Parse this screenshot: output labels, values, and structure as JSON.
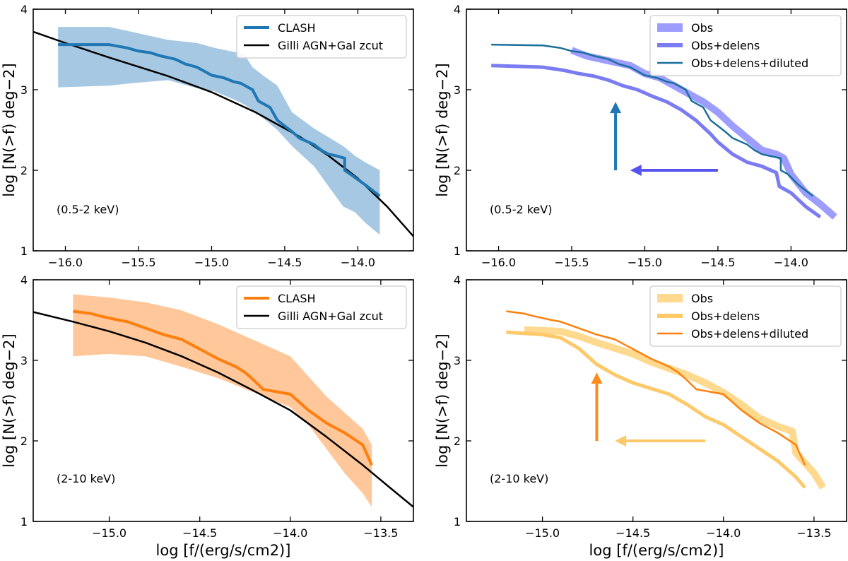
{
  "colors": {
    "clash_blue": "#1f77b4",
    "band_blue": "#a6c8e2",
    "clash_orange": "#ff7f0e",
    "band_orange": "#ffc79a",
    "model_black": "#000000",
    "obs_purple": "#8c8cff",
    "delens_purple": "#7b7bf2",
    "diluted_teal": "#1a6f9c",
    "obs_orange": "#ffd27a",
    "delens_orange": "#ffc96a",
    "diluted_orange": "#ff7f0e",
    "arrow_up_blue": "#1f77b4",
    "arrow_left_purple": "#5555ee",
    "arrow_up_orange": "#ff8c1a",
    "arrow_left_orange": "#ffc96a"
  },
  "chart_data": [
    {
      "id": "soft-clash",
      "type": "line",
      "band_label": "(0.5-2 keV)",
      "xlim": [
        -16.22,
        -13.62
      ],
      "ylim": [
        1,
        4
      ],
      "xticks": [
        -16.0,
        -15.5,
        -15.0,
        -14.5,
        -14.0
      ],
      "xtick_labels": [
        "−16.0",
        "−15.5",
        "−15.0",
        "−14.5",
        "−14.0"
      ],
      "yticks": [
        1,
        2,
        3,
        4
      ],
      "ytick_labels": [
        "1",
        "2",
        "3",
        "4"
      ],
      "ylabel": "log [N(>f) deg−2]",
      "xlabel": "",
      "legend": [
        {
          "label": "CLASH",
          "color_key": "clash_blue",
          "width": 4
        },
        {
          "label": "Gilli AGN+Gal zcut",
          "color_key": "model_black",
          "width": 2.5
        }
      ],
      "series": [
        {
          "name": "CLASH band",
          "kind": "band",
          "color_key": "band_blue",
          "x": [
            -16.05,
            -15.7,
            -15.55,
            -15.3,
            -15.1,
            -14.98,
            -14.85,
            -14.78,
            -14.72,
            -14.65,
            -14.55,
            -14.45,
            -14.3,
            -14.1,
            -14.02,
            -13.95,
            -13.85
          ],
          "upper": [
            3.78,
            3.78,
            3.72,
            3.62,
            3.58,
            3.52,
            3.47,
            3.45,
            3.28,
            3.18,
            3.05,
            2.72,
            2.52,
            2.3,
            2.18,
            2.1,
            2.0
          ],
          "lower": [
            3.03,
            3.05,
            3.08,
            3.12,
            3.02,
            2.98,
            2.88,
            2.82,
            2.75,
            2.65,
            2.5,
            2.3,
            2.05,
            1.55,
            1.48,
            1.35,
            1.2
          ]
        },
        {
          "name": "Gilli AGN+Gal zcut",
          "kind": "line",
          "color_key": "model_black",
          "width": 2.5,
          "x": [
            -16.22,
            -16.0,
            -15.7,
            -15.3,
            -15.0,
            -14.7,
            -14.4,
            -14.2,
            -14.0,
            -13.8,
            -13.62
          ],
          "y": [
            3.72,
            3.58,
            3.4,
            3.17,
            2.97,
            2.72,
            2.42,
            2.18,
            1.9,
            1.55,
            1.18
          ]
        },
        {
          "name": "CLASH",
          "kind": "line",
          "color_key": "clash_blue",
          "width": 4,
          "x": [
            -16.05,
            -15.7,
            -15.58,
            -15.5,
            -15.42,
            -15.35,
            -15.25,
            -15.18,
            -15.1,
            -15.0,
            -14.92,
            -14.85,
            -14.8,
            -14.72,
            -14.68,
            -14.6,
            -14.55,
            -14.5,
            -14.45,
            -14.4,
            -14.35,
            -14.3,
            -14.25,
            -14.2,
            -14.15,
            -14.09,
            -14.09,
            -14.05,
            -13.95,
            -13.85
          ],
          "y": [
            3.56,
            3.56,
            3.52,
            3.48,
            3.46,
            3.42,
            3.38,
            3.32,
            3.28,
            3.18,
            3.15,
            3.1,
            3.08,
            3.0,
            2.86,
            2.78,
            2.62,
            2.55,
            2.48,
            2.4,
            2.36,
            2.32,
            2.25,
            2.2,
            2.18,
            2.15,
            2.0,
            1.95,
            1.82,
            1.68
          ]
        }
      ]
    },
    {
      "id": "soft-obs",
      "type": "line",
      "band_label": "(0.5-2 keV)",
      "xlim": [
        -16.22,
        -13.62
      ],
      "ylim": [
        1,
        4
      ],
      "xticks": [
        -16.0,
        -15.5,
        -15.0,
        -14.5,
        -14.0
      ],
      "xtick_labels": [
        "−16.0",
        "−15.5",
        "−15.0",
        "−14.5",
        "−14.0"
      ],
      "yticks": [
        1,
        2,
        3,
        4
      ],
      "ytick_labels": [
        "1",
        "2",
        "3",
        "4"
      ],
      "ylabel": "log [N(>f) deg−2]",
      "xlabel": "",
      "legend": [
        {
          "label": "Obs",
          "color_key": "obs_purple",
          "width": 12
        },
        {
          "label": "Obs+delens",
          "color_key": "delens_purple",
          "width": 6
        },
        {
          "label": "Obs+delens+diluted",
          "color_key": "diluted_teal",
          "width": 2.5
        }
      ],
      "arrows": [
        {
          "name": "dilution-arrow",
          "color_key": "arrow_up_blue",
          "x1": -15.2,
          "y1": 2.0,
          "x2": -15.2,
          "y2": 2.85
        },
        {
          "name": "delensing-arrow",
          "color_key": "arrow_left_purple",
          "x1": -14.5,
          "y1": 2.0,
          "x2": -15.1,
          "y2": 2.0
        }
      ],
      "series": [
        {
          "name": "Obs",
          "kind": "line",
          "color_key": "obs_purple",
          "width": 10,
          "x": [
            -15.5,
            -15.4,
            -15.3,
            -15.2,
            -15.1,
            -15.0,
            -14.9,
            -14.8,
            -14.7,
            -14.6,
            -14.5,
            -14.4,
            -14.3,
            -14.2,
            -14.1,
            -14.05,
            -14.0,
            -13.9,
            -13.8,
            -13.7
          ],
          "y": [
            3.49,
            3.42,
            3.38,
            3.34,
            3.3,
            3.2,
            3.15,
            3.05,
            2.95,
            2.85,
            2.72,
            2.55,
            2.4,
            2.25,
            2.2,
            2.15,
            1.95,
            1.72,
            1.58,
            1.42
          ]
        },
        {
          "name": "Obs+delens",
          "kind": "line",
          "color_key": "delens_purple",
          "width": 5,
          "x": [
            -16.05,
            -15.7,
            -15.55,
            -15.45,
            -15.35,
            -15.25,
            -15.15,
            -15.05,
            -14.95,
            -14.85,
            -14.75,
            -14.65,
            -14.55,
            -14.5,
            -14.4,
            -14.3,
            -14.2,
            -14.1,
            -14.08,
            -14.0,
            -13.9,
            -13.8
          ],
          "y": [
            3.3,
            3.28,
            3.24,
            3.2,
            3.17,
            3.12,
            3.05,
            3.0,
            2.92,
            2.85,
            2.75,
            2.62,
            2.45,
            2.35,
            2.2,
            2.1,
            2.05,
            1.97,
            1.8,
            1.72,
            1.55,
            1.42
          ]
        },
        {
          "name": "Obs+delens+diluted",
          "kind": "line",
          "color_key": "diluted_teal",
          "width": 2.5,
          "x": [
            -16.05,
            -15.7,
            -15.58,
            -15.5,
            -15.42,
            -15.35,
            -15.25,
            -15.18,
            -15.1,
            -15.0,
            -14.92,
            -14.85,
            -14.8,
            -14.72,
            -14.68,
            -14.6,
            -14.55,
            -14.5,
            -14.45,
            -14.4,
            -14.35,
            -14.3,
            -14.25,
            -14.2,
            -14.15,
            -14.07,
            -14.07,
            -14.02,
            -13.95,
            -13.85
          ],
          "y": [
            3.56,
            3.55,
            3.52,
            3.48,
            3.46,
            3.42,
            3.38,
            3.32,
            3.28,
            3.18,
            3.15,
            3.1,
            3.08,
            3.0,
            2.86,
            2.78,
            2.62,
            2.55,
            2.48,
            2.4,
            2.36,
            2.32,
            2.25,
            2.2,
            2.18,
            2.15,
            2.0,
            1.95,
            1.82,
            1.68
          ]
        }
      ]
    },
    {
      "id": "hard-clash",
      "type": "line",
      "band_label": "(2-10 keV)",
      "xlim": [
        -15.42,
        -13.32
      ],
      "ylim": [
        1,
        4
      ],
      "xticks": [
        -15.0,
        -14.5,
        -14.0,
        -13.5
      ],
      "xtick_labels": [
        "−15.0",
        "−14.5",
        "−14.0",
        "−13.5"
      ],
      "yticks": [
        1,
        2,
        3,
        4
      ],
      "ytick_labels": [
        "1",
        "2",
        "3",
        "4"
      ],
      "ylabel": "log [N(>f) deg−2]",
      "xlabel": "log [f/(erg/s/cm2)]",
      "legend": [
        {
          "label": "CLASH",
          "color_key": "clash_orange",
          "width": 4
        },
        {
          "label": "Gilli AGN+Gal zcut",
          "color_key": "model_black",
          "width": 2.5
        }
      ],
      "series": [
        {
          "name": "CLASH band",
          "kind": "band",
          "color_key": "band_orange",
          "x": [
            -15.2,
            -15.0,
            -14.8,
            -14.6,
            -14.4,
            -14.2,
            -14.0,
            -13.9,
            -13.8,
            -13.7,
            -13.6,
            -13.55
          ],
          "upper": [
            3.82,
            3.78,
            3.72,
            3.62,
            3.45,
            3.25,
            3.05,
            2.8,
            2.55,
            2.35,
            2.15,
            1.95
          ],
          "lower": [
            3.05,
            3.08,
            3.05,
            2.92,
            2.78,
            2.6,
            2.42,
            2.2,
            1.9,
            1.6,
            1.35,
            1.18
          ]
        },
        {
          "name": "Gilli AGN+Gal zcut",
          "kind": "line",
          "color_key": "model_black",
          "width": 2.5,
          "x": [
            -15.42,
            -15.2,
            -15.0,
            -14.8,
            -14.6,
            -14.4,
            -14.2,
            -14.0,
            -13.8,
            -13.6,
            -13.45,
            -13.32
          ],
          "y": [
            3.6,
            3.48,
            3.36,
            3.22,
            3.05,
            2.85,
            2.62,
            2.38,
            2.05,
            1.7,
            1.42,
            1.18
          ]
        },
        {
          "name": "CLASH",
          "kind": "line",
          "color_key": "clash_orange",
          "width": 4,
          "x": [
            -15.2,
            -15.1,
            -15.05,
            -14.95,
            -14.9,
            -14.85,
            -14.8,
            -14.75,
            -14.7,
            -14.6,
            -14.55,
            -14.5,
            -14.45,
            -14.4,
            -14.35,
            -14.3,
            -14.25,
            -14.2,
            -14.15,
            -14.1,
            -14.05,
            -14.0,
            -13.95,
            -13.9,
            -13.8,
            -13.7,
            -13.6,
            -13.55
          ],
          "y": [
            3.61,
            3.58,
            3.55,
            3.5,
            3.48,
            3.44,
            3.4,
            3.36,
            3.32,
            3.26,
            3.2,
            3.14,
            3.08,
            3.02,
            2.97,
            2.92,
            2.85,
            2.75,
            2.64,
            2.62,
            2.6,
            2.58,
            2.48,
            2.38,
            2.22,
            2.1,
            1.95,
            1.7
          ]
        }
      ]
    },
    {
      "id": "hard-obs",
      "type": "line",
      "band_label": "(2-10 keV)",
      "xlim": [
        -15.42,
        -13.32
      ],
      "ylim": [
        1,
        4
      ],
      "xticks": [
        -15.0,
        -14.5,
        -14.0,
        -13.5
      ],
      "xtick_labels": [
        "−15.0",
        "−14.5",
        "−14.0",
        "−13.5"
      ],
      "yticks": [
        1,
        2,
        3,
        4
      ],
      "ytick_labels": [
        "1",
        "2",
        "3",
        "4"
      ],
      "ylabel": "log [N(>f) deg−2]",
      "xlabel": "log [f/(erg/s/cm2)]",
      "legend": [
        {
          "label": "Obs",
          "color_key": "obs_orange",
          "width": 12
        },
        {
          "label": "Obs+delens",
          "color_key": "delens_orange",
          "width": 6
        },
        {
          "label": "Obs+delens+diluted",
          "color_key": "diluted_orange",
          "width": 2.5
        }
      ],
      "arrows": [
        {
          "name": "dilution-arrow",
          "color_key": "arrow_up_orange",
          "x1": -14.7,
          "y1": 2.0,
          "x2": -14.7,
          "y2": 2.85
        },
        {
          "name": "delensing-arrow",
          "color_key": "arrow_left_orange",
          "x1": -14.1,
          "y1": 2.0,
          "x2": -14.6,
          "y2": 2.0
        }
      ],
      "series": [
        {
          "name": "Obs",
          "kind": "line",
          "color_key": "obs_orange",
          "width": 10,
          "x": [
            -15.1,
            -14.9,
            -14.8,
            -14.7,
            -14.6,
            -14.5,
            -14.4,
            -14.3,
            -14.2,
            -14.1,
            -14.0,
            -13.9,
            -13.8,
            -13.7,
            -13.62,
            -13.6,
            -13.5,
            -13.45
          ],
          "y": [
            3.38,
            3.36,
            3.3,
            3.22,
            3.15,
            3.08,
            2.98,
            2.9,
            2.82,
            2.72,
            2.6,
            2.45,
            2.28,
            2.18,
            2.12,
            1.85,
            1.6,
            1.42
          ]
        },
        {
          "name": "Obs+delens",
          "kind": "line",
          "color_key": "delens_orange",
          "width": 5,
          "x": [
            -15.2,
            -15.0,
            -14.9,
            -14.8,
            -14.7,
            -14.6,
            -14.5,
            -14.4,
            -14.3,
            -14.2,
            -14.1,
            -14.0,
            -13.9,
            -13.8,
            -13.7,
            -13.6,
            -13.55
          ],
          "y": [
            3.35,
            3.32,
            3.28,
            3.15,
            2.95,
            2.82,
            2.72,
            2.65,
            2.58,
            2.45,
            2.3,
            2.2,
            2.05,
            1.9,
            1.75,
            1.55,
            1.42
          ]
        },
        {
          "name": "Obs+delens+diluted",
          "kind": "line",
          "color_key": "diluted_orange",
          "width": 2.5,
          "x": [
            -15.2,
            -15.1,
            -15.05,
            -14.95,
            -14.9,
            -14.85,
            -14.8,
            -14.75,
            -14.7,
            -14.6,
            -14.55,
            -14.5,
            -14.45,
            -14.4,
            -14.35,
            -14.3,
            -14.25,
            -14.2,
            -14.15,
            -14.1,
            -14.05,
            -14.0,
            -13.95,
            -13.9,
            -13.8,
            -13.7,
            -13.6,
            -13.55
          ],
          "y": [
            3.61,
            3.58,
            3.55,
            3.5,
            3.48,
            3.44,
            3.4,
            3.36,
            3.32,
            3.26,
            3.2,
            3.14,
            3.08,
            3.02,
            2.97,
            2.92,
            2.85,
            2.75,
            2.64,
            2.62,
            2.6,
            2.58,
            2.48,
            2.38,
            2.22,
            2.1,
            1.95,
            1.7
          ]
        }
      ]
    }
  ]
}
